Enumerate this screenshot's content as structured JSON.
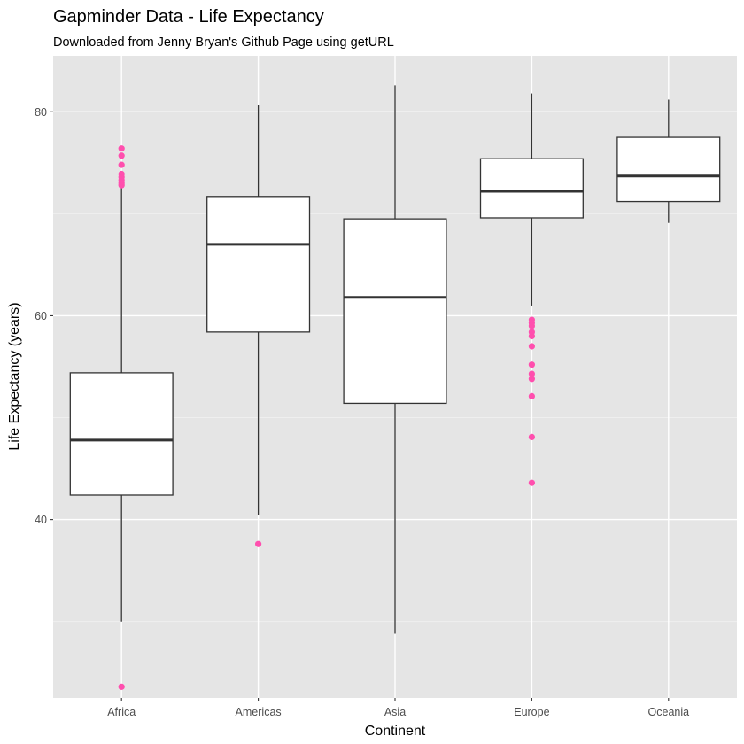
{
  "chart_data": {
    "type": "boxplot",
    "title": "Gapminder Data - Life Expectancy",
    "subtitle": "Downloaded from Jenny Bryan's Github Page using getURL",
    "xlabel": "Continent",
    "ylabel": "Life Expectancy (years)",
    "categories": [
      "Africa",
      "Americas",
      "Asia",
      "Europe",
      "Oceania"
    ],
    "ylim": [
      22.5,
      85.5
    ],
    "yticks": [
      40,
      60,
      80
    ],
    "grid": true,
    "panel_color": "#e5e5e5",
    "outlier_color": "#ff4fae",
    "box_fill": "#ffffff",
    "box_line": "#333333",
    "boxes": [
      {
        "category": "Africa",
        "lower_whisker": 30.0,
        "q1": 42.4,
        "median": 47.8,
        "q3": 54.4,
        "upper_whisker": 72.6,
        "outliers": [
          23.6,
          72.8,
          73.0,
          73.3,
          73.6,
          73.9,
          74.8,
          75.7,
          76.4
        ]
      },
      {
        "category": "Americas",
        "lower_whisker": 40.4,
        "q1": 58.4,
        "median": 67.0,
        "q3": 71.7,
        "upper_whisker": 80.7,
        "outliers": [
          37.6
        ]
      },
      {
        "category": "Asia",
        "lower_whisker": 28.8,
        "q1": 51.4,
        "median": 61.8,
        "q3": 69.5,
        "upper_whisker": 82.6,
        "outliers": []
      },
      {
        "category": "Europe",
        "lower_whisker": 61.0,
        "q1": 69.6,
        "median": 72.2,
        "q3": 75.4,
        "upper_whisker": 81.8,
        "outliers": [
          43.6,
          48.1,
          52.1,
          53.8,
          54.3,
          55.2,
          57.0,
          58.0,
          58.4,
          59.0,
          59.3,
          59.6
        ]
      },
      {
        "category": "Oceania",
        "lower_whisker": 69.1,
        "q1": 71.2,
        "median": 73.7,
        "q3": 77.5,
        "upper_whisker": 81.2,
        "outliers": []
      }
    ]
  }
}
